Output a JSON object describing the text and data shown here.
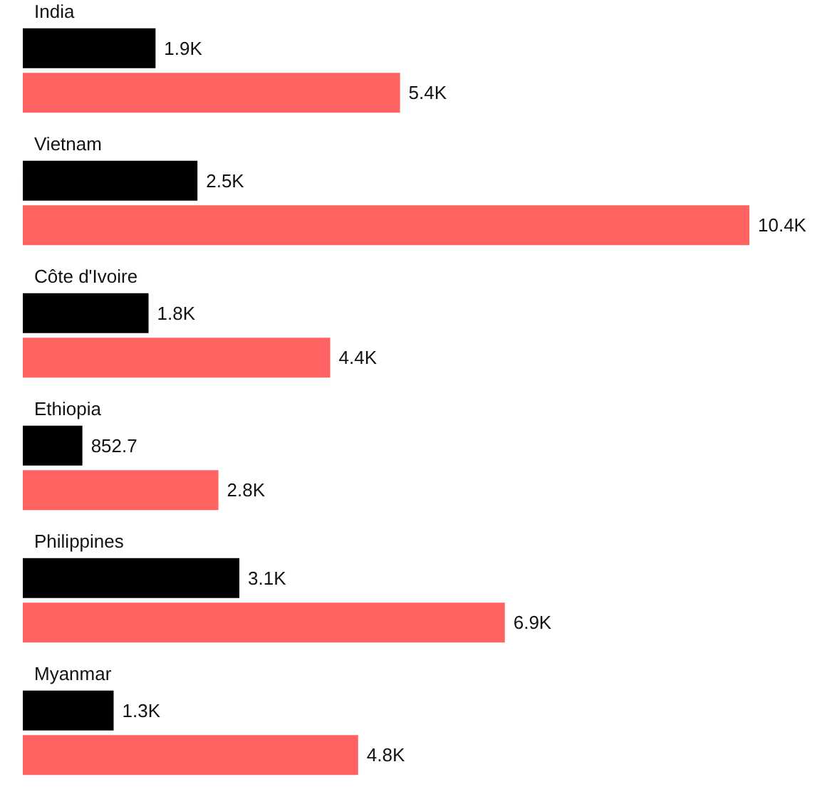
{
  "chart_data": {
    "type": "bar",
    "orientation": "horizontal",
    "tick_labels": "y",
    "grid": false,
    "categories": [
      "India",
      "Vietnam",
      "Côte d'Ivoire",
      "Ethiopia",
      "Philippines",
      "Myanmar"
    ],
    "series": [
      {
        "color": "#000000",
        "values": [
          1900,
          2500,
          1800,
          852.7,
          3100,
          1300
        ],
        "value_labels": [
          "1.9K",
          "2.5K",
          "1.8K",
          "852.7",
          "3.1K",
          "1.3K"
        ]
      },
      {
        "color": "#ff6361",
        "values": [
          5400,
          10400,
          4400,
          2800,
          6900,
          4800
        ],
        "value_labels": [
          "5.4K",
          "10.4K",
          "4.4K",
          "2.8K",
          "6.9K",
          "4.8K"
        ]
      }
    ]
  }
}
